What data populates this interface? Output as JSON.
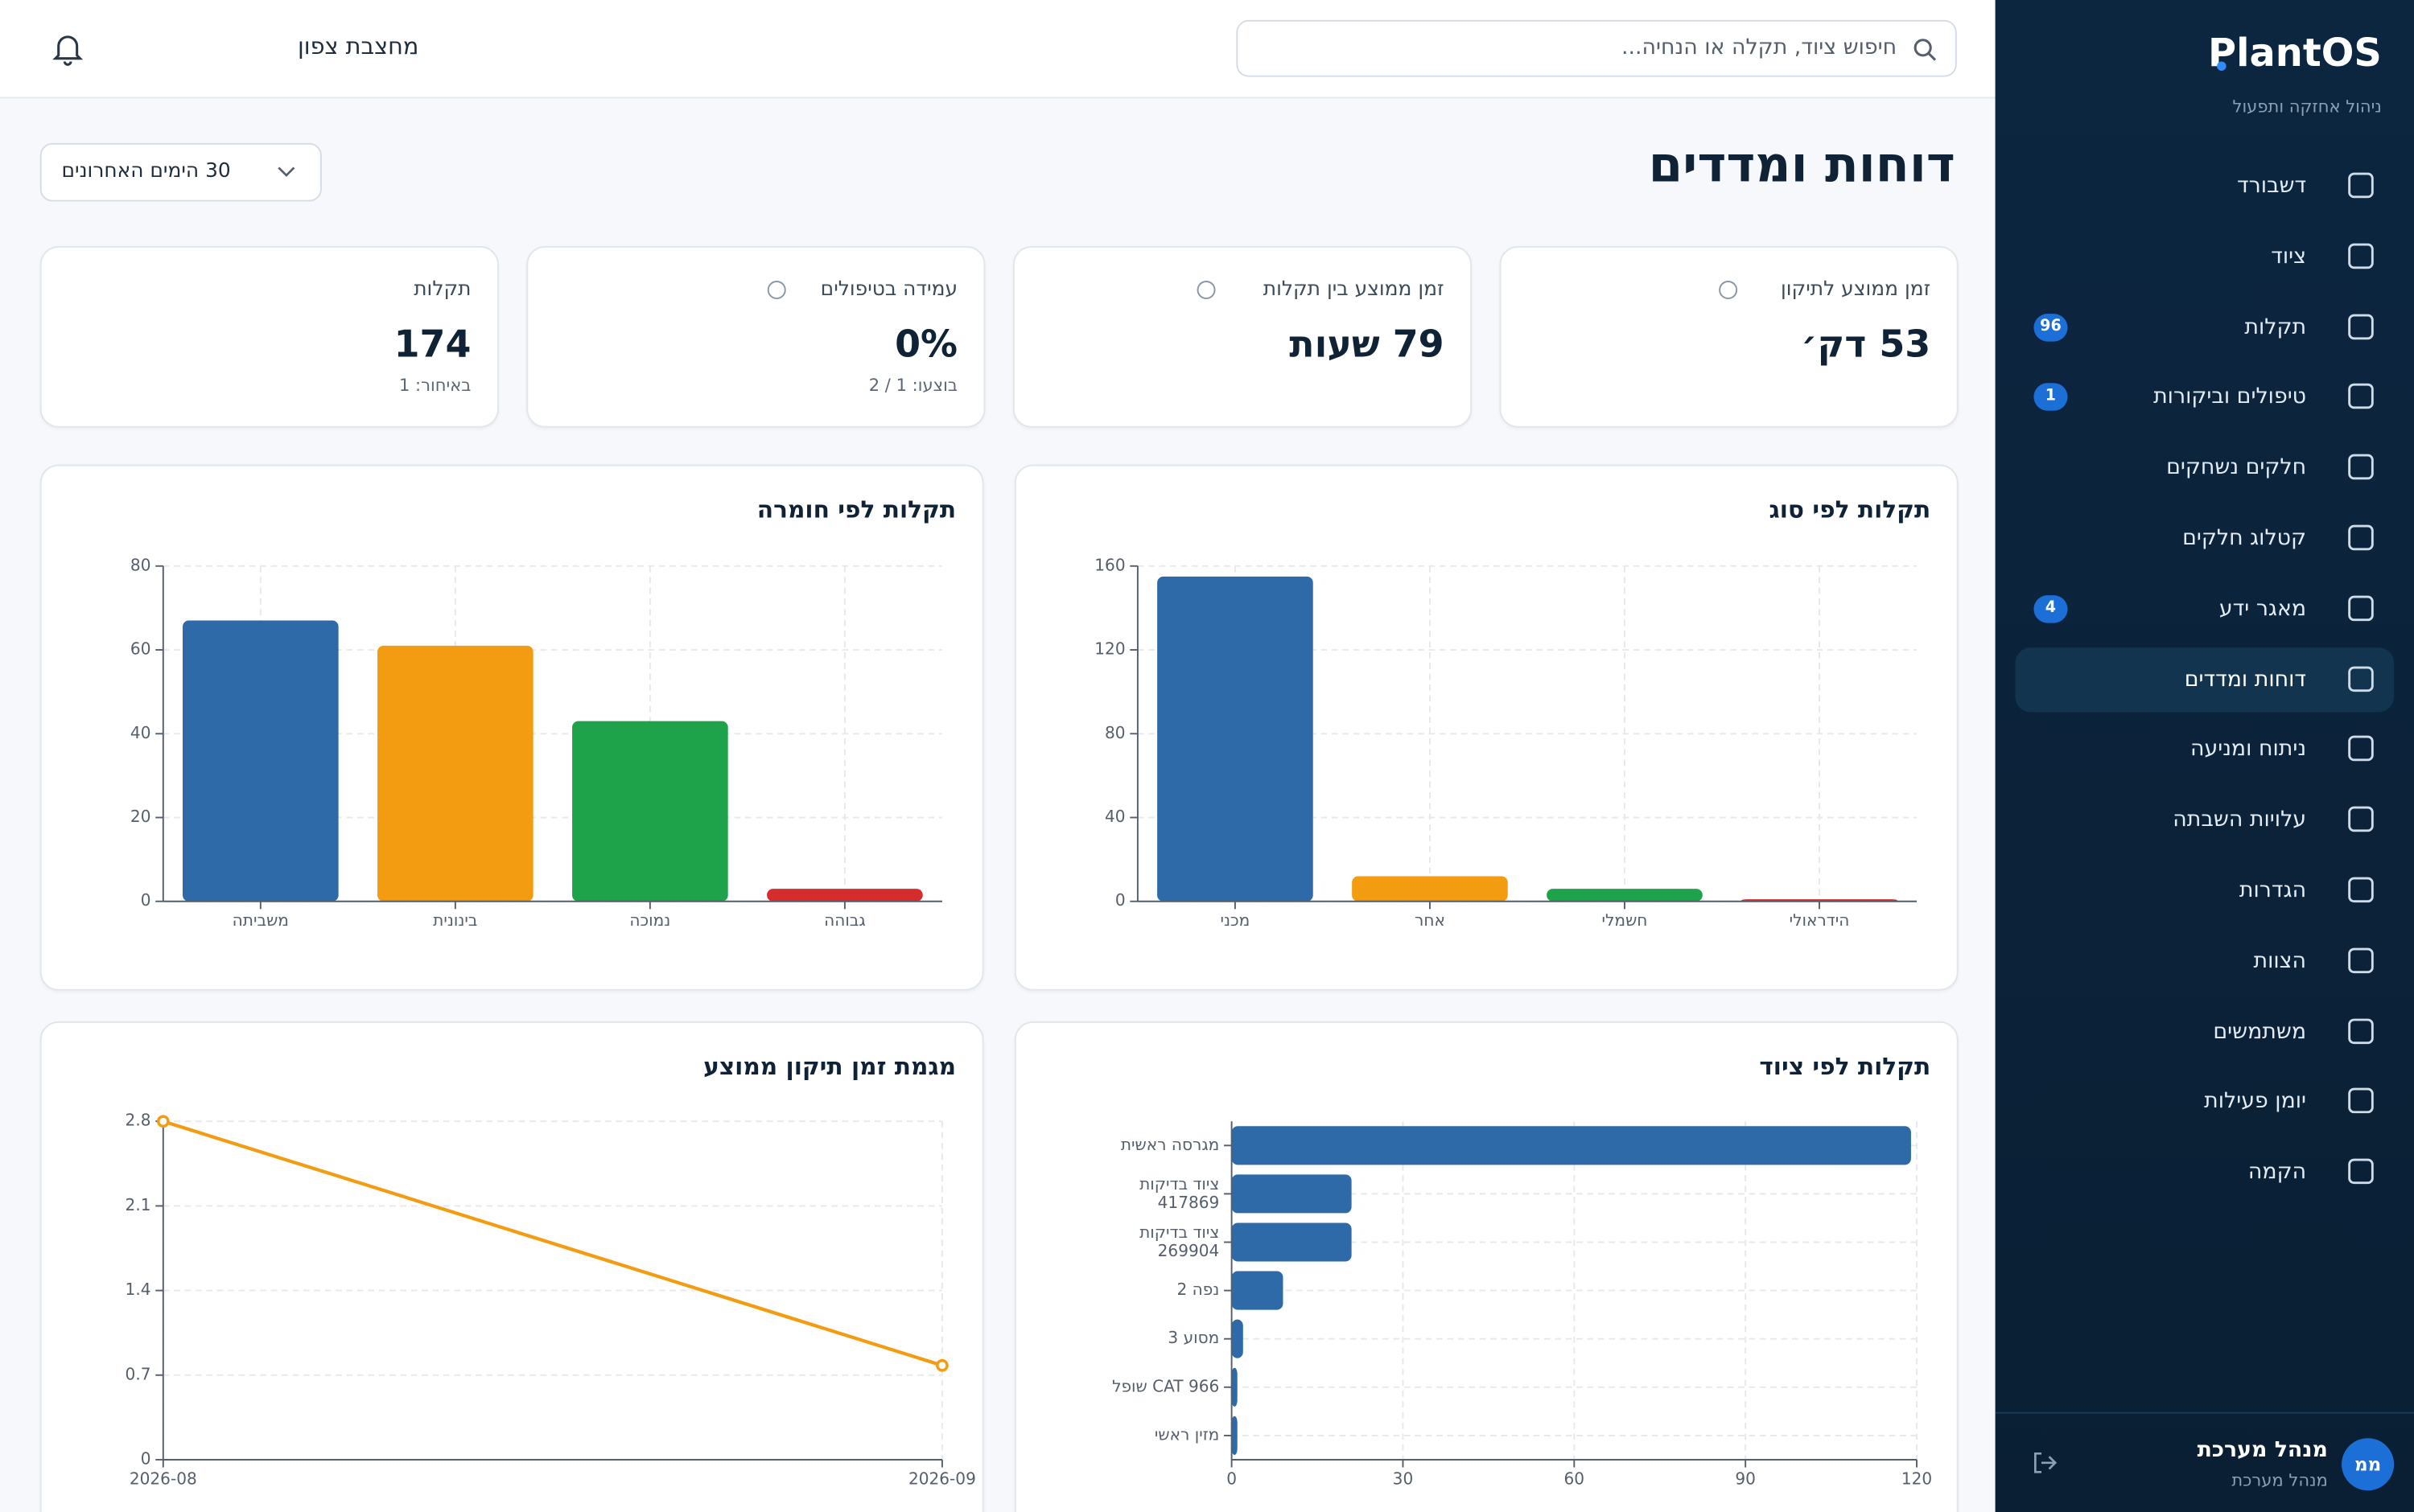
{
  "sidebar": {
    "brand": "PlantOS",
    "tagline": "ניהול אחזקה ותפעול",
    "nav": [
      {
        "label": "דשבורד"
      },
      {
        "label": "ציוד"
      },
      {
        "label": "תקלות",
        "badge": "96"
      },
      {
        "label": "טיפולים וביקורות",
        "badge": "1"
      },
      {
        "label": "חלקים נשחקים"
      },
      {
        "label": "קטלוג חלקים"
      },
      {
        "label": "מאגר ידע",
        "badge": "4"
      },
      {
        "label": "דוחות ומדדים",
        "active": true
      },
      {
        "label": "ניתוח ומניעה"
      },
      {
        "label": "עלויות השבתה"
      },
      {
        "label": "הגדרות"
      },
      {
        "label": "הצוות"
      },
      {
        "label": "משתמשים"
      },
      {
        "label": "יומן פעילות"
      },
      {
        "label": "הקמה"
      }
    ],
    "user": {
      "avatar": "ממ",
      "name": "מנהל מערכת",
      "role": "מנהל מערכת"
    }
  },
  "topbar": {
    "search_placeholder": "חיפוש ציוד, תקלה או הנחיה...",
    "site": "מחצבת צפון"
  },
  "header": {
    "title": "דוחות ומדדים",
    "range": "30 הימים האחרונים"
  },
  "kpis": [
    {
      "label": "זמן ממוצע לתיקון",
      "value": "53 דק׳",
      "help": true
    },
    {
      "label": "זמן ממוצע בין תקלות",
      "value": "79 שעות",
      "help": true
    },
    {
      "label": "עמידה בטיפולים",
      "value": "0%",
      "sub": "בוצעו: 1 / 2",
      "help": true
    },
    {
      "label": "תקלות",
      "value": "174",
      "sub": "באיחור: 1"
    }
  ],
  "chart_data": [
    {
      "type": "bar",
      "title": "תקלות לפי סוג",
      "categories": [
        "מכני",
        "אחר",
        "חשמלי",
        "הידראולי"
      ],
      "values": [
        155,
        12,
        6,
        1
      ],
      "colors": [
        "#2f6aa8",
        "#f39c12",
        "#1fa34a",
        "#d62c2c"
      ],
      "ylim": [
        0,
        160
      ],
      "yticks": [
        0,
        40,
        80,
        120,
        160
      ],
      "grid": true
    },
    {
      "type": "bar",
      "title": "תקלות לפי חומרה",
      "categories": [
        "משביתה",
        "בינונית",
        "נמוכה",
        "גבוהה"
      ],
      "values": [
        67,
        61,
        43,
        3
      ],
      "colors": [
        "#2f6aa8",
        "#f39c12",
        "#1fa34a",
        "#d62c2c"
      ],
      "ylim": [
        0,
        80
      ],
      "yticks": [
        0,
        20,
        40,
        60,
        80
      ],
      "grid": true
    },
    {
      "type": "bar",
      "orientation": "horizontal",
      "title": "תקלות לפי ציוד",
      "categories": [
        "מגרסה ראשית",
        "ציוד בדיקות 417869",
        "ציוד בדיקות 269904",
        "נפה 2",
        "מסוע 3",
        "שופל CAT 966",
        "מזין ראשי"
      ],
      "values": [
        119,
        21,
        21,
        9,
        2,
        1,
        1
      ],
      "color": "#2f6aa8",
      "xlim": [
        0,
        120
      ],
      "xticks": [
        0,
        30,
        60,
        90,
        120
      ],
      "grid": true
    },
    {
      "type": "line",
      "title": "מגמת זמן תיקון ממוצע",
      "x": [
        "2026-08",
        "2026-09"
      ],
      "values": [
        2.8,
        0.78
      ],
      "color": "#f39c12",
      "ylim": [
        0,
        2.8
      ],
      "yticks": [
        0,
        0.7,
        1.4,
        2.1,
        2.8
      ],
      "grid": true
    }
  ]
}
